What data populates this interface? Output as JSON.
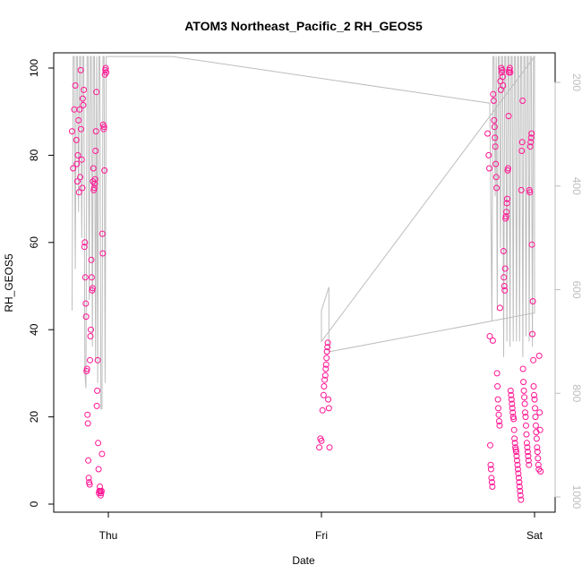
{
  "chart_data": {
    "type": "scatter",
    "title": "ATOM3 Northeast_Pacific_2 RH_GEOS5",
    "xlabel": "Date",
    "ylabel": "RH_GEOS5",
    "x_ticks": [
      "Thu",
      "Fri",
      "Sat"
    ],
    "y_ticks": [
      "0",
      "20",
      "40",
      "60",
      "80",
      "100"
    ],
    "ylim": [
      0,
      100
    ],
    "y2_ticks": [
      "200",
      "400",
      "600",
      "800",
      "1000"
    ],
    "y2lim": [
      1010,
      150
    ],
    "y2_reversed": true,
    "x_range_days": [
      -0.2,
      2.05
    ],
    "colors": {
      "points": "#ff1493",
      "line": "#bdbdbd",
      "axis": "#000000",
      "secondary_axis": "#bdbdbd"
    },
    "series": [
      {
        "marker": "open-circle",
        "points": [
          [
            -0.17,
            85.5
          ],
          [
            -0.165,
            77
          ],
          [
            -0.16,
            90.5
          ],
          [
            -0.155,
            96
          ],
          [
            -0.15,
            83.5
          ],
          [
            -0.148,
            78
          ],
          [
            -0.145,
            74
          ],
          [
            -0.143,
            80
          ],
          [
            -0.14,
            88
          ],
          [
            -0.138,
            71.5
          ],
          [
            -0.135,
            90.5
          ],
          [
            -0.132,
            75
          ],
          [
            -0.13,
            99.5
          ],
          [
            -0.128,
            86
          ],
          [
            -0.125,
            79
          ],
          [
            -0.122,
            72.5
          ],
          [
            -0.12,
            93
          ],
          [
            -0.118,
            91.5
          ],
          [
            -0.115,
            95
          ],
          [
            -0.112,
            59
          ],
          [
            -0.11,
            60
          ],
          [
            -0.108,
            52
          ],
          [
            -0.106,
            46
          ],
          [
            -0.104,
            43
          ],
          [
            -0.102,
            30.5
          ],
          [
            -0.1,
            31
          ],
          [
            -0.098,
            20.5
          ],
          [
            -0.096,
            18.5
          ],
          [
            -0.094,
            10
          ],
          [
            -0.092,
            6
          ],
          [
            -0.09,
            5
          ],
          [
            -0.088,
            4.5
          ],
          [
            -0.086,
            33
          ],
          [
            -0.084,
            38.5
          ],
          [
            -0.082,
            40
          ],
          [
            -0.08,
            56
          ],
          [
            -0.078,
            52
          ],
          [
            -0.076,
            49
          ],
          [
            -0.074,
            49.5
          ],
          [
            -0.072,
            74
          ],
          [
            -0.07,
            77
          ],
          [
            -0.068,
            72
          ],
          [
            -0.066,
            72.5
          ],
          [
            -0.064,
            73.5
          ],
          [
            -0.062,
            74.5
          ],
          [
            -0.06,
            81
          ],
          [
            -0.058,
            85.5
          ],
          [
            -0.056,
            94.5
          ],
          [
            -0.054,
            22.5
          ],
          [
            -0.052,
            26
          ],
          [
            -0.05,
            33
          ],
          [
            -0.048,
            14
          ],
          [
            -0.046,
            8
          ],
          [
            -0.044,
            2.5
          ],
          [
            -0.042,
            3
          ],
          [
            -0.04,
            4
          ],
          [
            -0.038,
            3
          ],
          [
            -0.036,
            2
          ],
          [
            -0.034,
            2.5
          ],
          [
            -0.032,
            3
          ],
          [
            -0.03,
            11.5
          ],
          [
            -0.028,
            62
          ],
          [
            -0.026,
            57.5
          ],
          [
            -0.024,
            87
          ],
          [
            -0.022,
            86
          ],
          [
            -0.02,
            86.5
          ],
          [
            -0.018,
            76.5
          ],
          [
            -0.016,
            98.5
          ],
          [
            -0.014,
            99.5
          ],
          [
            -0.012,
            100
          ],
          [
            -0.01,
            99
          ],
          [
            0.99,
            13
          ],
          [
            0.995,
            15
          ],
          [
            1.0,
            14.5
          ],
          [
            1.005,
            21.5
          ],
          [
            1.01,
            25
          ],
          [
            1.012,
            27
          ],
          [
            1.015,
            28.5
          ],
          [
            1.018,
            29.5
          ],
          [
            1.02,
            31
          ],
          [
            1.022,
            32
          ],
          [
            1.024,
            33.5
          ],
          [
            1.026,
            35
          ],
          [
            1.028,
            36
          ],
          [
            1.03,
            37
          ],
          [
            1.032,
            24
          ],
          [
            1.035,
            22
          ],
          [
            1.038,
            13
          ],
          [
            1.78,
            85
          ],
          [
            1.785,
            80
          ],
          [
            1.788,
            77
          ],
          [
            1.79,
            38.5
          ],
          [
            1.792,
            13.5
          ],
          [
            1.794,
            9
          ],
          [
            1.796,
            8
          ],
          [
            1.798,
            6
          ],
          [
            1.8,
            5
          ],
          [
            1.802,
            4
          ],
          [
            1.804,
            37.5
          ],
          [
            1.806,
            94
          ],
          [
            1.808,
            92.5
          ],
          [
            1.81,
            88
          ],
          [
            1.812,
            86.5
          ],
          [
            1.814,
            84
          ],
          [
            1.816,
            82
          ],
          [
            1.818,
            78
          ],
          [
            1.82,
            75
          ],
          [
            1.822,
            72.5
          ],
          [
            1.824,
            30
          ],
          [
            1.826,
            27
          ],
          [
            1.828,
            24
          ],
          [
            1.83,
            22
          ],
          [
            1.832,
            20.5
          ],
          [
            1.834,
            19
          ],
          [
            1.836,
            18
          ],
          [
            1.838,
            45
          ],
          [
            1.84,
            97
          ],
          [
            1.842,
            95
          ],
          [
            1.844,
            100
          ],
          [
            1.846,
            99
          ],
          [
            1.848,
            99.5
          ],
          [
            1.85,
            98
          ],
          [
            1.852,
            96
          ],
          [
            1.854,
            58
          ],
          [
            1.856,
            52
          ],
          [
            1.858,
            50
          ],
          [
            1.86,
            49
          ],
          [
            1.862,
            54
          ],
          [
            1.864,
            65.5
          ],
          [
            1.866,
            66
          ],
          [
            1.868,
            67
          ],
          [
            1.87,
            69
          ],
          [
            1.872,
            70
          ],
          [
            1.874,
            76.5
          ],
          [
            1.876,
            77
          ],
          [
            1.878,
            89
          ],
          [
            1.88,
            99
          ],
          [
            1.882,
            99.5
          ],
          [
            1.884,
            100
          ],
          [
            1.886,
            99
          ],
          [
            1.888,
            26
          ],
          [
            1.89,
            25
          ],
          [
            1.892,
            24
          ],
          [
            1.894,
            23
          ],
          [
            1.896,
            22
          ],
          [
            1.898,
            21
          ],
          [
            1.9,
            20
          ],
          [
            1.902,
            19.5
          ],
          [
            1.904,
            17
          ],
          [
            1.906,
            15
          ],
          [
            1.908,
            14
          ],
          [
            1.91,
            13
          ],
          [
            1.912,
            12.5
          ],
          [
            1.914,
            12
          ],
          [
            1.916,
            11
          ],
          [
            1.918,
            10
          ],
          [
            1.92,
            9
          ],
          [
            1.922,
            8
          ],
          [
            1.924,
            7
          ],
          [
            1.926,
            6
          ],
          [
            1.928,
            5
          ],
          [
            1.93,
            4
          ],
          [
            1.932,
            3
          ],
          [
            1.934,
            2
          ],
          [
            1.936,
            1
          ],
          [
            1.938,
            72
          ],
          [
            1.94,
            81
          ],
          [
            1.942,
            83
          ],
          [
            1.944,
            92.5
          ],
          [
            1.946,
            31
          ],
          [
            1.948,
            28
          ],
          [
            1.95,
            26
          ],
          [
            1.952,
            24.5
          ],
          [
            1.954,
            23
          ],
          [
            1.956,
            21
          ],
          [
            1.958,
            20
          ],
          [
            1.96,
            18
          ],
          [
            1.962,
            16
          ],
          [
            1.964,
            14
          ],
          [
            1.966,
            13
          ],
          [
            1.968,
            12
          ],
          [
            1.97,
            11
          ],
          [
            1.972,
            10
          ],
          [
            1.974,
            9
          ],
          [
            1.976,
            72
          ],
          [
            1.978,
            71.5
          ],
          [
            1.98,
            82
          ],
          [
            1.982,
            83
          ],
          [
            1.984,
            84
          ],
          [
            1.986,
            85
          ],
          [
            1.988,
            59.5
          ],
          [
            1.99,
            39
          ],
          [
            1.992,
            46.5
          ],
          [
            1.994,
            33
          ],
          [
            1.996,
            27
          ],
          [
            1.998,
            25
          ],
          [
            2.0,
            24
          ],
          [
            2.002,
            22
          ],
          [
            2.004,
            20
          ],
          [
            2.006,
            18
          ],
          [
            2.008,
            16.5
          ],
          [
            2.01,
            15
          ],
          [
            2.012,
            13
          ],
          [
            2.014,
            12
          ],
          [
            2.016,
            10.5
          ],
          [
            2.018,
            9
          ],
          [
            2.02,
            8
          ],
          [
            2.022,
            34
          ],
          [
            2.024,
            21
          ],
          [
            2.026,
            17
          ],
          [
            2.028,
            7.5
          ]
        ]
      },
      {
        "marker": "line",
        "axis": "secondary",
        "points": [
          [
            -0.17,
            640
          ],
          [
            -0.165,
            150
          ],
          [
            -0.16,
            150
          ],
          [
            -0.155,
            560
          ],
          [
            -0.15,
            150
          ],
          [
            -0.145,
            150
          ],
          [
            -0.14,
            450
          ],
          [
            -0.135,
            150
          ],
          [
            -0.13,
            150
          ],
          [
            -0.125,
            500
          ],
          [
            -0.12,
            150
          ],
          [
            -0.115,
            150
          ],
          [
            -0.11,
            760
          ],
          [
            -0.105,
            790
          ],
          [
            -0.1,
            150
          ],
          [
            -0.095,
            150
          ],
          [
            -0.09,
            620
          ],
          [
            -0.085,
            150
          ],
          [
            -0.08,
            150
          ],
          [
            -0.075,
            710
          ],
          [
            -0.07,
            150
          ],
          [
            -0.065,
            150
          ],
          [
            -0.06,
            740
          ],
          [
            -0.055,
            150
          ],
          [
            -0.05,
            780
          ],
          [
            -0.045,
            150
          ],
          [
            -0.04,
            150
          ],
          [
            -0.035,
            830
          ],
          [
            -0.03,
            830
          ],
          [
            -0.025,
            150
          ],
          [
            -0.02,
            150
          ],
          [
            -0.015,
            780
          ],
          [
            -0.01,
            150
          ],
          [
            -0.005,
            150
          ],
          [
            0.0,
            150
          ],
          [
            0.3,
            150
          ],
          [
            1.79,
            240
          ],
          [
            1.795,
            440
          ],
          [
            1.8,
            660
          ],
          [
            1.805,
            150
          ],
          [
            1.81,
            150
          ],
          [
            1.815,
            420
          ],
          [
            1.82,
            150
          ],
          [
            1.825,
            640
          ],
          [
            1.83,
            150
          ],
          [
            1.835,
            150
          ],
          [
            1.84,
            520
          ],
          [
            1.845,
            150
          ],
          [
            1.85,
            150
          ],
          [
            1.855,
            730
          ],
          [
            1.86,
            150
          ],
          [
            1.865,
            150
          ],
          [
            1.87,
            700
          ],
          [
            1.875,
            150
          ],
          [
            1.88,
            150
          ],
          [
            1.885,
            710
          ],
          [
            1.89,
            150
          ],
          [
            1.895,
            150
          ],
          [
            1.9,
            700
          ],
          [
            1.905,
            150
          ],
          [
            1.91,
            150
          ],
          [
            1.915,
            700
          ],
          [
            1.92,
            150
          ],
          [
            1.925,
            150
          ],
          [
            1.93,
            700
          ],
          [
            1.935,
            150
          ],
          [
            1.94,
            150
          ],
          [
            1.945,
            730
          ],
          [
            1.95,
            150
          ],
          [
            1.955,
            150
          ],
          [
            1.96,
            690
          ],
          [
            1.965,
            150
          ],
          [
            1.97,
            150
          ],
          [
            1.975,
            700
          ],
          [
            1.98,
            150
          ],
          [
            1.985,
            150
          ],
          [
            1.99,
            710
          ],
          [
            1.995,
            150
          ],
          [
            2.0,
            150
          ],
          [
            1.0,
            700
          ],
          [
            1.0,
            650
          ],
          [
            1.0,
            640
          ],
          [
            1.035,
            595
          ],
          [
            1.035,
            670
          ],
          [
            1.035,
            720
          ],
          [
            2.0,
            645
          ],
          [
            2.0,
            150
          ]
        ]
      }
    ]
  }
}
